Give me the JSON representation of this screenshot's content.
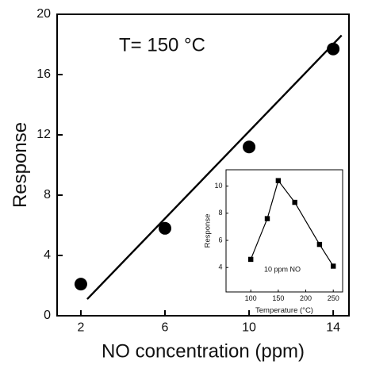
{
  "chart_data": [
    {
      "type": "scatter",
      "xlabel": "NO concentration (ppm)",
      "ylabel": "Response",
      "annotation": "T= 150 °C",
      "x": [
        2,
        6,
        10,
        14
      ],
      "values": [
        2.1,
        5.8,
        11.2,
        17.7
      ],
      "color": "#000000",
      "fit": {
        "x": [
          2.3,
          14.4
        ],
        "values": [
          1.1,
          18.6
        ]
      },
      "xlim": [
        0.87,
        14.75
      ],
      "ylim": [
        0,
        20
      ],
      "xticks": [
        2,
        6,
        10,
        14
      ],
      "yticks": [
        0,
        4,
        8,
        12,
        16,
        20
      ]
    },
    {
      "type": "line",
      "xlabel": "Temperature (°C)",
      "ylabel": "Response",
      "annotation": "10 ppm NO",
      "x": [
        100,
        130,
        150,
        180,
        225,
        250
      ],
      "values": [
        4.6,
        7.6,
        10.4,
        8.8,
        5.7,
        4.1
      ],
      "color": "#000000",
      "xlim": [
        55,
        267
      ],
      "ylim": [
        2.2,
        11.2
      ],
      "xticks": [
        100,
        150,
        200,
        250
      ],
      "yticks": [
        4,
        6,
        8,
        10
      ]
    }
  ]
}
